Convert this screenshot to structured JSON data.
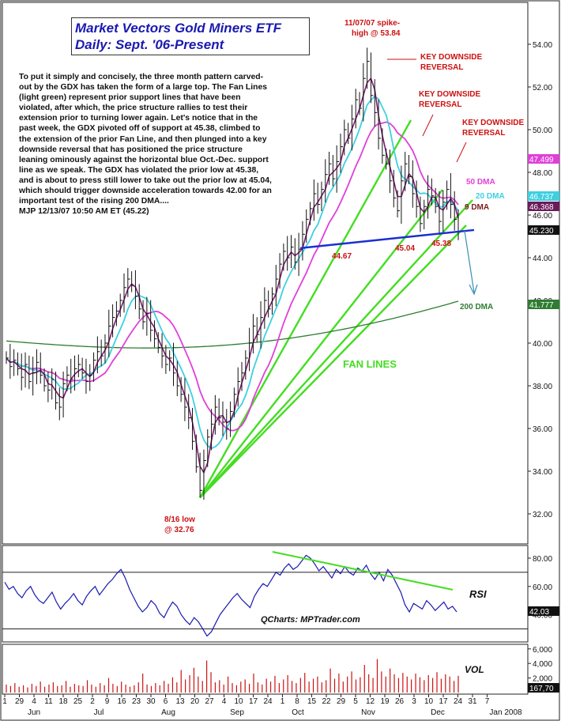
{
  "title": {
    "line1": "Market Vectors Gold Miners ETF",
    "line2": "Daily: Sept. '06-Present"
  },
  "commentary": {
    "body": "To put it simply and concisely, the three month pattern carved-out by the GDX has taken the form of a large top. The Fan Lines (light green) represent prior support lines that have been violated, after which, the price structure rallies to test their extension prior to turning lower again. Let's notice that in the past week, the GDX pivoted off of support at 45.38, climbed to the extension of the prior Fan Line, and then plunged into a key downside reversal that has positioned the price structure leaning ominously against the horizontal blue Oct.-Dec. support line as we speak. The GDX has violated the prior low at 45.38, and is about to press still lower to take out the prior low at 45.04, which should trigger downside acceleration towards 42.00 for an important test of the rising 200 DMA....",
    "signature": "MJP  12/13/07 10:50 AM ET  (45.22)"
  },
  "colors": {
    "price_bars": "#111111",
    "dma_9": "#7b1d6e",
    "dma_20": "#3fd0e0",
    "dma_50": "#e040d8",
    "dma_200": "#2e7d32",
    "fan_lines": "#44dd22",
    "support_line": "#1a2fd0",
    "annotation_red": "#cc1111",
    "rsi_line": "#1a1ab0",
    "rsi_trend": "#44dd22",
    "volume_bars": "#cc1111",
    "title_blue": "#1a1ab0"
  },
  "chart_data": [
    {
      "type": "ohlc",
      "panel": "price",
      "ylim": [
        31,
        55
      ],
      "y_ticks": [
        "54.00",
        "52.00",
        "50.00",
        "48.00",
        "46.00",
        "44.00",
        "42.00",
        "40.00",
        "38.00",
        "36.00",
        "34.00",
        "32.00"
      ],
      "x_tick_labels": [
        "1",
        "29",
        "4",
        "11",
        "18",
        "25",
        "2",
        "9",
        "16",
        "23",
        "30",
        "6",
        "13",
        "20",
        "27",
        "4",
        "10",
        "17",
        "24",
        "1",
        "8",
        "15",
        "22",
        "29",
        "5",
        "12",
        "19",
        "26",
        "3",
        "10",
        "17",
        "24",
        "31",
        "7"
      ],
      "month_labels": [
        "Jun",
        "Jul",
        "Aug",
        "Sep",
        "Oct",
        "Nov",
        "Dec",
        "Jan 2008"
      ],
      "price_closes": [
        39.3,
        38.9,
        39.2,
        38.8,
        38.4,
        39.0,
        38.2,
        38.6,
        39.1,
        38.5,
        38.0,
        37.8,
        38.3,
        37.2,
        37.0,
        38.1,
        38.5,
        38.3,
        38.8,
        39.0,
        38.6,
        38.2,
        38.5,
        39.2,
        39.6,
        39.4,
        40.0,
        40.8,
        41.2,
        41.5,
        42.0,
        42.6,
        43.0,
        42.7,
        42.2,
        41.6,
        41.0,
        41.4,
        40.6,
        40.2,
        39.8,
        39.4,
        39.0,
        39.3,
        38.6,
        38.0,
        37.6,
        37.0,
        36.5,
        35.4,
        34.2,
        33.1,
        34.5,
        35.6,
        36.2,
        37.0,
        36.5,
        36.3,
        36.0,
        36.8,
        37.6,
        38.2,
        38.6,
        39.3,
        40.0,
        40.8,
        40.4,
        41.2,
        42.0,
        41.6,
        42.3,
        43.0,
        43.7,
        44.3,
        44.0,
        44.5,
        43.8,
        44.4,
        45.1,
        45.8,
        46.3,
        47.0,
        46.5,
        47.2,
        47.9,
        48.4,
        47.7,
        48.5,
        49.2,
        50.0,
        49.6,
        50.5,
        51.4,
        51.0,
        52.4,
        53.2,
        51.6,
        50.8,
        49.6,
        48.8,
        48.4,
        47.6,
        46.8,
        46.2,
        47.6,
        48.4,
        47.8,
        47.0,
        46.4,
        45.6,
        46.4,
        47.2,
        46.9,
        46.4,
        45.7,
        46.6,
        47.2,
        46.5,
        45.8,
        45.22
      ],
      "high_low": [
        {
          "label": "11/07/07 spike-high",
          "value": 53.84
        },
        {
          "label": "8/16 low",
          "value": 32.76
        }
      ],
      "support_levels": [
        44.67,
        45.04,
        45.38
      ],
      "last_values": {
        "dma_50": 47.499,
        "dma_20": 46.737,
        "dma_9": 46.368,
        "price": 45.23,
        "dma_200": 41.777
      },
      "price_tags": [
        "47.499",
        "46.737",
        "46.368",
        "45.230",
        "41.777"
      ],
      "series_labels": [
        "50 DMA",
        "20 DMA",
        "9 DMA",
        "200 DMA"
      ],
      "annotations": {
        "spike_high": [
          "11/07/07 spike-",
          "high @ 53.84"
        ],
        "low": [
          "8/16 low",
          "@ 32.76"
        ],
        "reversal": [
          "KEY DOWNSIDE",
          "REVERSAL"
        ],
        "fan_lines": "FAN LINES",
        "supports": [
          "44.67",
          "45.04",
          "45.38"
        ]
      }
    },
    {
      "type": "line",
      "panel": "rsi",
      "label": "RSI",
      "ylim": [
        20,
        90
      ],
      "y_ticks": [
        "80.00",
        "60.00",
        "40.00"
      ],
      "reference_lines": [
        70,
        30
      ],
      "last_value": "42.03",
      "values": [
        63,
        58,
        60,
        55,
        52,
        57,
        60,
        54,
        50,
        48,
        52,
        56,
        49,
        44,
        48,
        51,
        55,
        50,
        47,
        53,
        57,
        60,
        54,
        58,
        62,
        65,
        69,
        72,
        66,
        58,
        52,
        46,
        42,
        45,
        50,
        47,
        41,
        38,
        44,
        49,
        46,
        40,
        36,
        33,
        38,
        35,
        30,
        25,
        28,
        34,
        40,
        44,
        48,
        52,
        55,
        51,
        48,
        45,
        53,
        58,
        62,
        60,
        65,
        70,
        68,
        73,
        76,
        72,
        74,
        78,
        82,
        80,
        76,
        71,
        74,
        70,
        66,
        72,
        69,
        74,
        70,
        68,
        73,
        71,
        75,
        69,
        65,
        70,
        64,
        72,
        68,
        62,
        56,
        47,
        42,
        48,
        46,
        44,
        50,
        47,
        43,
        46,
        49,
        44,
        46,
        42
      ]
    },
    {
      "type": "bar",
      "panel": "volume",
      "label": "VOL",
      "y_ticks": [
        "6,000",
        "4,000",
        "2,000"
      ],
      "last_value": "167,70",
      "values": [
        1.1,
        0.9,
        1.3,
        0.8,
        1.0,
        0.7,
        1.2,
        0.9,
        1.5,
        0.8,
        1.1,
        1.4,
        0.9,
        1.0,
        1.6,
        0.8,
        1.2,
        1.0,
        0.9,
        1.7,
        1.1,
        0.8,
        1.3,
        1.0,
        2.0,
        1.2,
        0.9,
        1.5,
        1.1,
        0.8,
        1.0,
        1.4,
        2.6,
        1.1,
        0.9,
        1.3,
        1.0,
        1.6,
        1.2,
        2.1,
        1.4,
        3.1,
        1.8,
        2.4,
        3.4,
        2.2,
        1.6,
        4.4,
        2.8,
        1.4,
        1.7,
        1.1,
        2.2,
        1.3,
        1.0,
        1.5,
        1.8,
        1.2,
        2.6,
        1.4,
        1.1,
        1.9,
        1.5,
        2.3,
        1.3,
        1.8,
        2.4,
        1.6,
        1.3,
        2.0,
        2.7,
        1.5,
        1.9,
        2.2,
        1.4,
        1.7,
        3.3,
        1.9,
        2.6,
        1.5,
        2.2,
        2.9,
        1.8,
        2.1,
        3.8,
        2.5,
        2.0,
        4.6,
        2.9,
        2.2,
        3.3,
        2.5,
        2.0,
        2.7,
        2.2,
        1.8,
        2.6,
        2.1,
        1.7,
        2.4,
        2.0,
        2.8,
        1.9,
        2.5,
        2.2,
        1.6,
        2.3
      ]
    }
  ],
  "footer": {
    "watermark": "QCharts: MPTrader.com"
  }
}
